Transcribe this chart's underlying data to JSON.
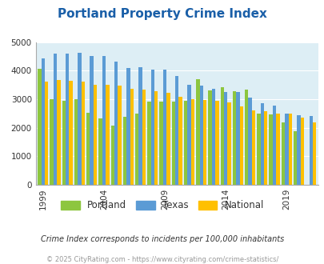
{
  "title": "Portland Property Crime Index",
  "subtitle": "Crime Index corresponds to incidents per 100,000 inhabitants",
  "footer": "© 2025 CityRating.com - https://www.cityrating.com/crime-statistics/",
  "years": [
    1999,
    2000,
    2001,
    2002,
    2003,
    2004,
    2005,
    2006,
    2007,
    2008,
    2009,
    2010,
    2011,
    2012,
    2013,
    2014,
    2015,
    2016,
    2017,
    2018,
    2019,
    2020,
    2021
  ],
  "portland": [
    4070,
    3010,
    2950,
    3010,
    2520,
    2340,
    2090,
    2390,
    2510,
    2920,
    2920,
    2910,
    2960,
    3700,
    3310,
    3430,
    3280,
    3330,
    2490,
    2480,
    2180,
    1870,
    0
  ],
  "texas": [
    4430,
    4610,
    4610,
    4620,
    4530,
    4520,
    4330,
    4100,
    4130,
    4030,
    4030,
    3810,
    3500,
    3470,
    3380,
    3250,
    3250,
    3060,
    2860,
    2790,
    2490,
    2430,
    2400
  ],
  "national": [
    3610,
    3680,
    3660,
    3620,
    3520,
    3510,
    3480,
    3360,
    3340,
    3270,
    3230,
    3080,
    2990,
    2970,
    2960,
    2890,
    2760,
    2620,
    2570,
    2510,
    2490,
    2360,
    2190
  ],
  "portland_color": "#8dc63f",
  "texas_color": "#5b9bd5",
  "national_color": "#ffc000",
  "bg_color": "#ddeef5",
  "title_color": "#1a5fa8",
  "ylim": [
    0,
    5000
  ],
  "yticks": [
    0,
    1000,
    2000,
    3000,
    4000,
    5000
  ],
  "xtick_years": [
    1999,
    2004,
    2009,
    2014,
    2019
  ],
  "grid_color": "#ffffff",
  "subtitle_color": "#333333",
  "footer_color": "#999999"
}
